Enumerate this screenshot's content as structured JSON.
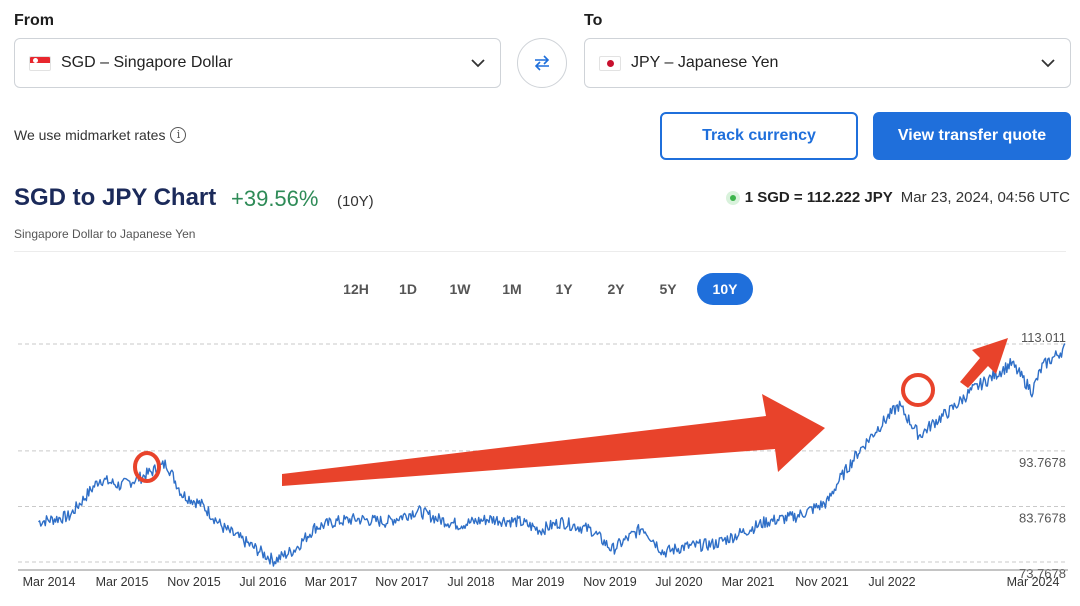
{
  "from": {
    "label": "From",
    "code": "SGD",
    "name": "SGD – Singapore Dollar"
  },
  "to": {
    "label": "To",
    "code": "JPY",
    "name": "JPY – Japanese Yen"
  },
  "midmarket_text": "We use midmarket rates",
  "buttons": {
    "track": "Track currency",
    "quote": "View transfer quote"
  },
  "chart_header": {
    "title": "SGD to JPY Chart",
    "change": "+39.56%",
    "period": "(10Y)",
    "subtitle": "Singapore Dollar to Japanese Yen",
    "rate": "1 SGD = 112.222 JPY",
    "timestamp": "Mar 23, 2024, 04:56 UTC"
  },
  "ranges": [
    "12H",
    "1D",
    "1W",
    "1M",
    "1Y",
    "2Y",
    "5Y",
    "10Y"
  ],
  "active_range": "10Y",
  "colors": {
    "accent": "#1f6fdb",
    "positive": "#2e8b57",
    "line": "#2f6fc7",
    "annotation": "#e8432b"
  },
  "chart_data": {
    "type": "line",
    "xlabels": [
      "Mar 2014",
      "Mar 2015",
      "Nov 2015",
      "Jul 2016",
      "Mar 2017",
      "Nov 2017",
      "Jul 2018",
      "Mar 2019",
      "Nov 2019",
      "Jul 2020",
      "Mar 2021",
      "Nov 2021",
      "Jul 2022",
      "Mar 2024"
    ],
    "ygrid": [
      {
        "label": "113.011",
        "value": 113.011
      },
      {
        "label": "93.7678",
        "value": 93.7678
      },
      {
        "label": "83.7678",
        "value": 83.7678
      },
      {
        "label": "73.7678",
        "value": 73.7678
      }
    ],
    "x": [
      2014.2,
      2014.5,
      2014.8,
      2015.0,
      2015.2,
      2015.45,
      2015.6,
      2015.8,
      2016.0,
      2016.25,
      2016.5,
      2016.7,
      2016.9,
      2017.1,
      2017.3,
      2017.6,
      2017.9,
      2018.1,
      2018.3,
      2018.6,
      2018.9,
      2019.1,
      2019.3,
      2019.6,
      2019.8,
      2020.1,
      2020.3,
      2020.5,
      2020.8,
      2021.0,
      2021.3,
      2021.6,
      2021.9,
      2022.0,
      2022.2,
      2022.4,
      2022.6,
      2022.8,
      2022.95,
      2023.1,
      2023.3,
      2023.5,
      2023.7,
      2023.9,
      2024.0,
      2024.22
    ],
    "y": [
      81.0,
      82.0,
      88.7,
      87.5,
      89.0,
      91.5,
      86.0,
      84.0,
      80.0,
      77.0,
      74.0,
      76.0,
      80.0,
      81.0,
      81.5,
      81.0,
      83.0,
      81.5,
      80.5,
      81.5,
      81.0,
      79.5,
      81.0,
      79.5,
      76.0,
      80.0,
      75.5,
      76.5,
      77.0,
      78.5,
      81.0,
      82.0,
      84.5,
      88.0,
      93.5,
      98.0,
      102.0,
      96.5,
      99.0,
      101.0,
      104.5,
      107.0,
      109.5,
      104.5,
      109.0,
      112.2
    ]
  },
  "annotations": [
    "circle-mar-2015-peak",
    "circle-2022-peak",
    "arrow-long",
    "arrow-end"
  ]
}
